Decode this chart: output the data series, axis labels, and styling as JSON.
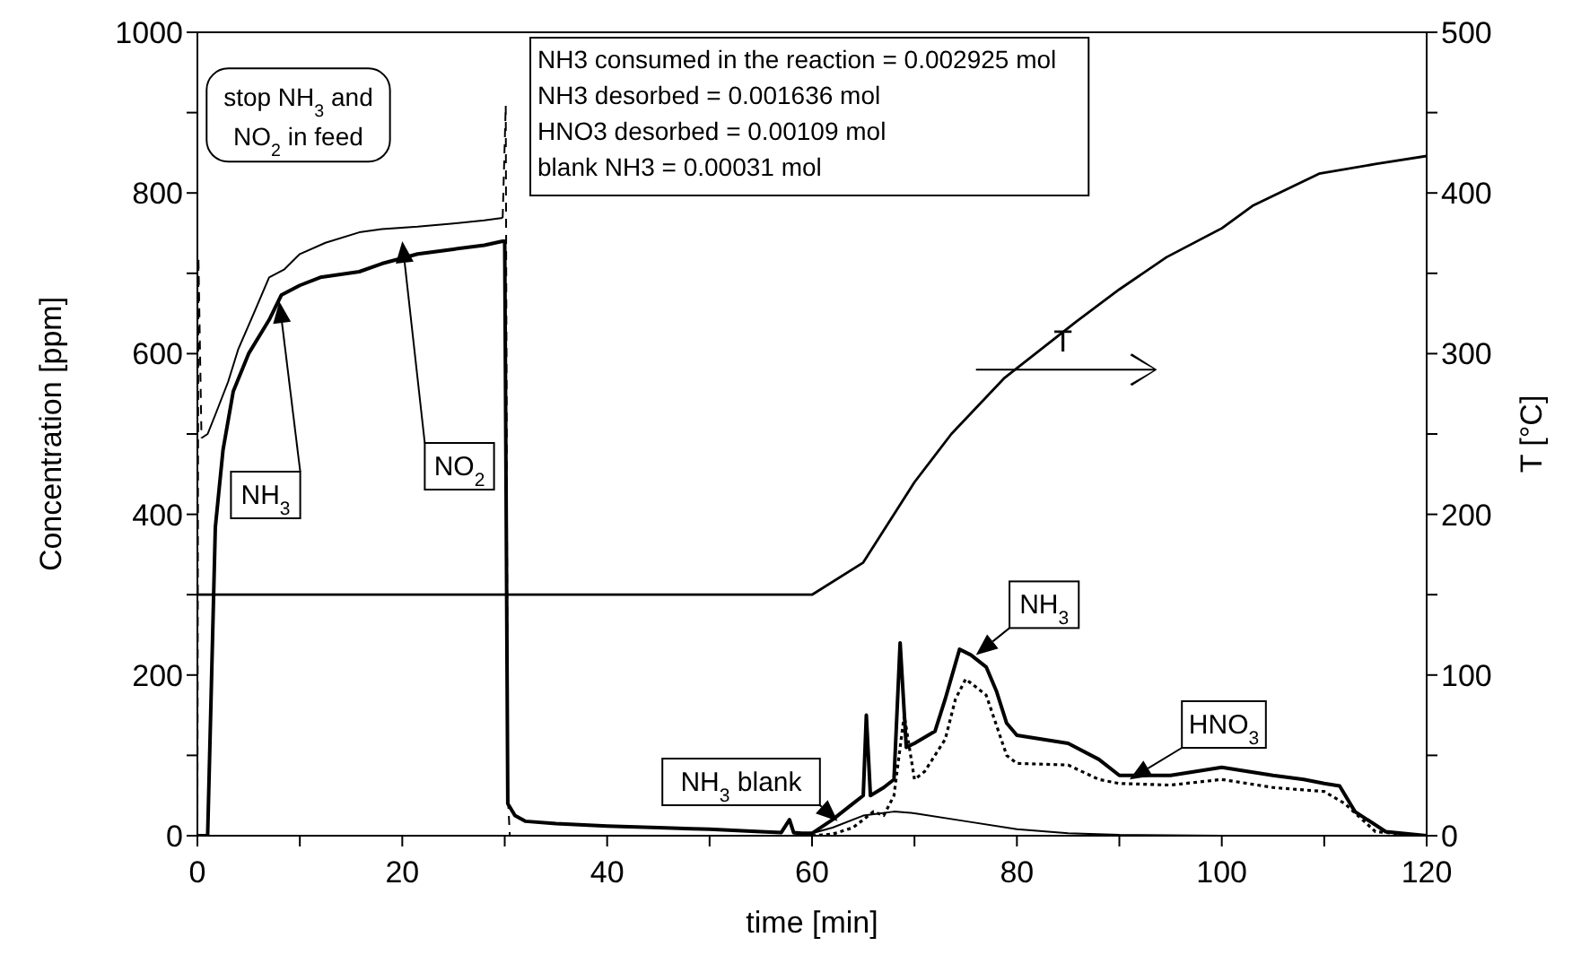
{
  "chart_data": {
    "type": "line",
    "xlabel": "time [min]",
    "ylabel": "Concentration [ppm]",
    "y2label": "T [°C]",
    "xlim": [
      0,
      120
    ],
    "xticks": [
      0,
      {
        "value": 10,
        "label": null
      },
      20,
      {
        "value": 30,
        "label": null
      },
      40,
      {
        "value": 50,
        "label": null
      },
      60,
      {
        "value": 70,
        "label": null
      },
      80,
      {
        "value": 90,
        "label": null
      },
      100,
      {
        "value": 110,
        "label": null
      },
      120
    ],
    "ylim": [
      0,
      1000
    ],
    "yticks": [
      0,
      {
        "value": 100,
        "label": null
      },
      200,
      {
        "value": 300,
        "label": null
      },
      400,
      {
        "value": 500,
        "label": null
      },
      600,
      {
        "value": 700,
        "label": null
      },
      800,
      {
        "value": 900,
        "label": null
      },
      1000
    ],
    "y2lim": [
      0,
      500
    ],
    "y2ticks": [
      0,
      {
        "value": 50,
        "label": null
      },
      100,
      {
        "value": 150,
        "label": null
      },
      200,
      {
        "value": 250,
        "label": null
      },
      300,
      {
        "value": 350,
        "label": null
      },
      400,
      {
        "value": 450,
        "label": null
      },
      500
    ],
    "marker": "none",
    "series": [
      {
        "name": "NH$_{3}$",
        "color": "#000000",
        "line_style": "solid",
        "x": [
          0,
          1,
          1.75,
          2.5,
          3.5,
          5,
          7,
          8.2,
          10,
          12,
          15.8,
          18,
          21.5,
          25,
          28,
          29.8,
          30,
          30.3,
          31,
          32,
          35,
          40,
          45,
          50,
          55,
          57,
          57.8,
          58.2,
          59,
          60,
          62,
          64,
          65,
          65.3,
          65.7,
          67,
          68,
          68.6,
          69.2,
          70,
          72,
          73,
          74.4,
          75.5,
          77,
          78,
          79,
          80,
          85,
          88,
          90,
          95,
          100,
          105,
          108,
          110,
          111.5,
          113,
          116,
          120
        ],
        "values": [
          0,
          0,
          384,
          480,
          553,
          600,
          642,
          673,
          685,
          695,
          702,
          712,
          724,
          730,
          735,
          740,
          740,
          40,
          25,
          18,
          15,
          12,
          10,
          8,
          5,
          4,
          20,
          4,
          3,
          3,
          20,
          40,
          50,
          150,
          50,
          60,
          70,
          240,
          110,
          115,
          130,
          170,
          232,
          225,
          210,
          180,
          140,
          125,
          115,
          95,
          75,
          75,
          85,
          75,
          70,
          65,
          62,
          30,
          5,
          0
        ]
      },
      {
        "name": "NO$_{2}$",
        "color": "#000000",
        "line_style": "solid",
        "x": [
          0.4,
          1,
          1.75,
          3,
          4,
          5.5,
          7,
          8.5,
          10,
          12.5,
          15.8,
          18,
          21.5,
          25,
          28,
          29.8
        ],
        "values": [
          495,
          500,
          524,
          565,
          606,
          650,
          695,
          705,
          724,
          738,
          751,
          755,
          758,
          762,
          766,
          769
        ]
      },
      {
        "color": "#000000",
        "line_style": "dashed",
        "x": [
          0,
          0.1,
          0.4,
          null,
          29.8,
          30.1,
          30.3,
          30.5
        ],
        "values": [
          0,
          720,
          495,
          null,
          769,
          909,
          50,
          0
        ]
      },
      {
        "name": "HNO$_{3}$",
        "color": "#000000",
        "line_style": "dotted",
        "x": [
          60,
          62,
          64,
          66,
          67,
          68,
          69,
          70,
          71,
          73,
          74,
          75,
          77,
          79,
          80,
          85,
          88,
          90,
          95,
          100,
          105,
          110,
          112,
          115,
          120
        ],
        "values": [
          0,
          2,
          10,
          30,
          25,
          50,
          150,
          70,
          80,
          120,
          170,
          195,
          175,
          100,
          90,
          88,
          70,
          65,
          63,
          70,
          60,
          55,
          40,
          5,
          0
        ]
      },
      {
        "name": "NH$_{3}$ blank",
        "color": "#000000",
        "line_style": "solid",
        "x": [
          58,
          60,
          62,
          65,
          68,
          70,
          75,
          80,
          85,
          90,
          100,
          120
        ],
        "values": [
          0,
          3,
          10,
          25,
          30,
          28,
          18,
          8,
          3,
          1,
          0,
          0
        ]
      },
      {
        "name": "T",
        "color": "#000000",
        "line_style": "solid",
        "axis": "y2",
        "x": [
          0,
          60,
          65,
          70,
          73.6,
          78.8,
          85.8,
          90,
          94.6,
          100,
          103,
          109.5,
          115,
          120
        ],
        "values": [
          150,
          150,
          170,
          220,
          250,
          285,
          320,
          340,
          360,
          378,
          392,
          412,
          418,
          423
        ]
      }
    ],
    "annotations": [
      "stop NH$_{3}$ and NO$_{2}$ in feed",
      "NH3 consumed in the reaction = 0.002925 mol",
      "NH3 desorbed = 0.001636 mol",
      "HNO3 desorbed = 0.00109 mol",
      "blank NH3 = 0.00031 mol",
      {
        "text": "NH$_{3}$",
        "x": 76,
        "y": 225
      }
    ]
  }
}
